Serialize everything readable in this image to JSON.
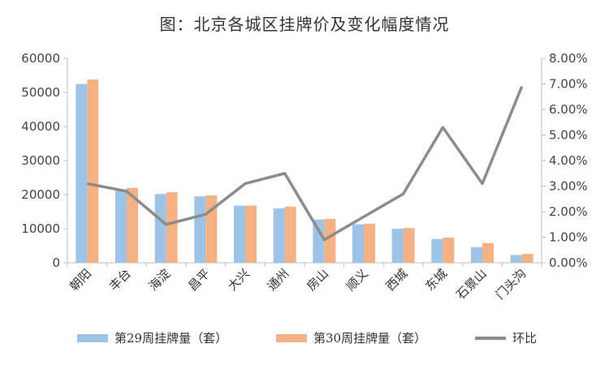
{
  "title": "图：北京各城区挂牌价及变化幅度情况",
  "colors": {
    "series1": "#9dc3e6",
    "series2": "#f4b183",
    "line": "#8c8c8c"
  },
  "chart_data": {
    "type": "bar",
    "categories": [
      "朝阳",
      "丰台",
      "海淀",
      "昌平",
      "大兴",
      "通州",
      "房山",
      "顺义",
      "西城",
      "东城",
      "石景山",
      "门头沟"
    ],
    "series": [
      {
        "name": "第29周挂牌量（套）",
        "type": "bar",
        "axis": "left",
        "values": [
          52500,
          21500,
          20200,
          19500,
          16800,
          16000,
          12700,
          11300,
          10000,
          7000,
          4600,
          2300
        ]
      },
      {
        "name": "第30周挂牌量（套）",
        "type": "bar",
        "axis": "left",
        "values": [
          53800,
          22000,
          20700,
          19800,
          16800,
          16500,
          12900,
          11500,
          10200,
          7400,
          5800,
          2600
        ]
      },
      {
        "name": "环比",
        "type": "line",
        "axis": "right",
        "values": [
          3.1,
          2.8,
          1.5,
          1.9,
          3.1,
          3.5,
          0.9,
          1.8,
          2.7,
          5.3,
          3.1,
          6.9
        ]
      }
    ],
    "y_left": {
      "min": 0,
      "max": 60000,
      "ticks": [
        "0",
        "10000",
        "20000",
        "30000",
        "40000",
        "50000",
        "60000"
      ]
    },
    "y_right": {
      "min": 0,
      "max": 8,
      "unit": "%",
      "ticks": [
        "0.00%",
        "1.00%",
        "2.00%",
        "3.00%",
        "4.00%",
        "5.00%",
        "6.00%",
        "7.00%",
        "8.00%"
      ]
    },
    "grid": false,
    "legend": "bottom"
  }
}
